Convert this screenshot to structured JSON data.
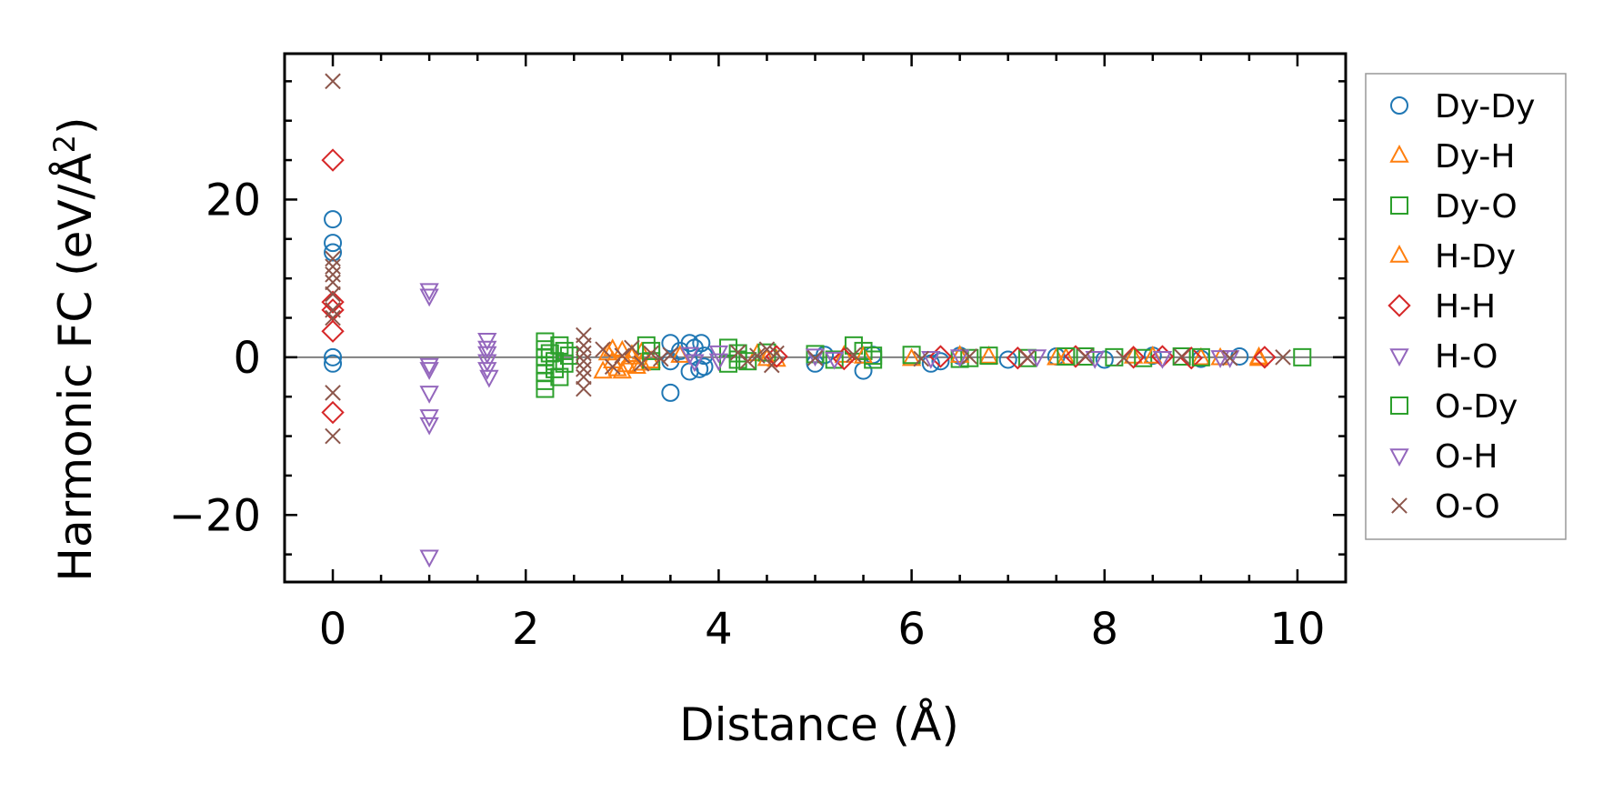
{
  "chart_data": {
    "type": "scatter",
    "xlabel": "Distance (Å)",
    "ylabel": "Harmonic FC (eV/Å²)",
    "ylabel_main": "Harmonic FC (eV/Å",
    "ylabel_sup": "2",
    "ylabel_close": ")",
    "xlim": [
      -0.5,
      10.5
    ],
    "ylim": [
      -28.5,
      38.5
    ],
    "x_ticks": [
      0,
      2,
      4,
      6,
      8,
      10
    ],
    "y_ticks": [
      -20,
      0,
      20
    ],
    "x_tick_labels": [
      "0",
      "2",
      "4",
      "6",
      "8",
      "10"
    ],
    "y_tick_labels": [
      "−20",
      "0",
      "20"
    ],
    "grid": false,
    "zero_line": true,
    "legend_position": "outside-right",
    "series": [
      {
        "name": "Dy-Dy",
        "marker": "circle",
        "color": "#1f77b4",
        "points": [
          [
            0,
            17.5
          ],
          [
            0,
            14.5
          ],
          [
            0,
            13.3
          ],
          [
            0,
            0
          ],
          [
            0,
            -0.8
          ],
          [
            3.5,
            1.8
          ],
          [
            3.5,
            -4.5
          ],
          [
            3.5,
            -0.5
          ],
          [
            3.6,
            0.8
          ],
          [
            3.7,
            1.8
          ],
          [
            3.7,
            -1.8
          ],
          [
            3.75,
            1.2
          ],
          [
            3.8,
            -1.5
          ],
          [
            3.82,
            1.8
          ],
          [
            3.85,
            -1.2
          ],
          [
            3.85,
            0.2
          ],
          [
            5.0,
            -0.8
          ],
          [
            5.1,
            0.3
          ],
          [
            5.5,
            -1.7
          ],
          [
            5.6,
            0.3
          ],
          [
            6.2,
            -0.8
          ],
          [
            6.3,
            -0.5
          ],
          [
            6.5,
            0.2
          ],
          [
            7.0,
            -0.3
          ],
          [
            7.5,
            0.1
          ],
          [
            8.0,
            -0.3
          ],
          [
            8.5,
            0.2
          ],
          [
            9.0,
            -0.2
          ],
          [
            9.4,
            0.1
          ]
        ]
      },
      {
        "name": "Dy-H",
        "marker": "triangle-up",
        "color": "#ff7f0e",
        "points": [
          [
            2.8,
            -1.8
          ],
          [
            2.85,
            0.5
          ],
          [
            2.9,
            1.0
          ],
          [
            2.95,
            -1.5
          ],
          [
            3.0,
            0.8
          ],
          [
            3.05,
            -1.0
          ],
          [
            3.1,
            0.3
          ],
          [
            3.15,
            -1.2
          ],
          [
            3.2,
            0.6
          ],
          [
            3.3,
            -0.5
          ],
          [
            4.4,
            0.4
          ],
          [
            4.6,
            -0.3
          ],
          [
            5.3,
            0.2
          ],
          [
            6.0,
            -0.2
          ],
          [
            6.8,
            0.1
          ],
          [
            7.6,
            -0.1
          ],
          [
            8.3,
            0.1
          ],
          [
            9.0,
            -0.1
          ],
          [
            9.6,
            -0.2
          ]
        ]
      },
      {
        "name": "Dy-O",
        "marker": "square",
        "color": "#2ca02c",
        "points": [
          [
            2.2,
            2.0
          ],
          [
            2.2,
            1.0
          ],
          [
            2.2,
            0
          ],
          [
            2.2,
            -1.0
          ],
          [
            2.2,
            -2.0
          ],
          [
            2.2,
            -3.0
          ],
          [
            2.2,
            -4.0
          ],
          [
            2.25,
            0.5
          ],
          [
            2.3,
            -1.5
          ],
          [
            2.35,
            -2.5
          ],
          [
            2.4,
            0.8
          ],
          [
            2.4,
            -0.8
          ],
          [
            2.45,
            0.2
          ],
          [
            3.25,
            1.5
          ],
          [
            3.3,
            -0.5
          ],
          [
            4.1,
            1.2
          ],
          [
            4.1,
            -0.8
          ],
          [
            4.2,
            0.5
          ],
          [
            4.3,
            -0.5
          ],
          [
            4.5,
            0.6
          ],
          [
            5.0,
            0.4
          ],
          [
            5.2,
            -0.3
          ],
          [
            5.4,
            1.5
          ],
          [
            5.5,
            0.8
          ],
          [
            5.6,
            -0.3
          ],
          [
            6.0,
            0.3
          ],
          [
            6.5,
            -0.2
          ],
          [
            6.8,
            0.2
          ],
          [
            7.2,
            -0.1
          ],
          [
            7.8,
            0.1
          ],
          [
            8.4,
            -0.1
          ],
          [
            8.8,
            0.1
          ],
          [
            10.05,
            0
          ]
        ]
      },
      {
        "name": "H-Dy",
        "marker": "triangle-up",
        "color": "#ff7f0e",
        "points": [
          [
            2.9,
            -0.5
          ],
          [
            3.0,
            -1.8
          ],
          [
            3.1,
            0.0
          ],
          [
            3.2,
            -0.8
          ],
          [
            3.6,
            0.2
          ],
          [
            4.5,
            -0.2
          ],
          [
            5.5,
            0.1
          ],
          [
            6.5,
            0.2
          ],
          [
            7.5,
            -0.1
          ],
          [
            8.5,
            0.1
          ],
          [
            9.2,
            -0.1
          ],
          [
            9.6,
            0
          ]
        ]
      },
      {
        "name": "H-H",
        "marker": "diamond",
        "color": "#d62728",
        "points": [
          [
            0,
            25
          ],
          [
            0,
            7
          ],
          [
            0,
            6
          ],
          [
            0,
            3.3
          ],
          [
            0,
            -7
          ],
          [
            4.6,
            0.1
          ],
          [
            5.3,
            -0.2
          ],
          [
            6.3,
            0.1
          ],
          [
            7.1,
            -0.1
          ],
          [
            7.7,
            0.1
          ],
          [
            8.3,
            0
          ],
          [
            8.6,
            0.1
          ],
          [
            8.9,
            -0.1
          ],
          [
            9.66,
            0
          ]
        ]
      },
      {
        "name": "H-O",
        "marker": "triangle-down",
        "color": "#9467bd",
        "points": [
          [
            1.0,
            8.5
          ],
          [
            1.0,
            7.8
          ],
          [
            1.0,
            -1.5
          ],
          [
            1.0,
            -4.5
          ],
          [
            1.0,
            -7.5
          ],
          [
            1.0,
            -8.5
          ],
          [
            1.0,
            -25.3
          ],
          [
            1.6,
            2.2
          ],
          [
            1.6,
            1.2
          ],
          [
            1.6,
            -0.5
          ],
          [
            1.6,
            -1.5
          ],
          [
            1.62,
            -2.5
          ],
          [
            3.7,
            0.4
          ],
          [
            4.0,
            -0.4
          ],
          [
            5.0,
            0.2
          ],
          [
            6.2,
            -0.1
          ],
          [
            7.3,
            0.1
          ],
          [
            8.6,
            -0.1
          ],
          [
            9.2,
            0
          ]
        ]
      },
      {
        "name": "O-Dy",
        "marker": "square",
        "color": "#2ca02c",
        "points": [
          [
            2.3,
            -0.5
          ],
          [
            2.35,
            1.5
          ],
          [
            3.3,
            0.8
          ],
          [
            4.2,
            -0.3
          ],
          [
            5.6,
            0.2
          ],
          [
            6.6,
            -0.1
          ],
          [
            7.6,
            0.1
          ],
          [
            8.1,
            0
          ],
          [
            9.0,
            0
          ]
        ]
      },
      {
        "name": "O-H",
        "marker": "triangle-down",
        "color": "#9467bd",
        "points": [
          [
            1.0,
            -1.0
          ],
          [
            1.6,
            0.5
          ],
          [
            3.75,
            -0.5
          ],
          [
            4.0,
            0.6
          ],
          [
            5.2,
            -0.2
          ],
          [
            6.5,
            0.1
          ],
          [
            7.9,
            -0.1
          ],
          [
            9.3,
            0
          ]
        ]
      },
      {
        "name": "O-O",
        "marker": "x",
        "color": "#8c564b",
        "points": [
          [
            0,
            35
          ],
          [
            0,
            12.5
          ],
          [
            0,
            11.5
          ],
          [
            0,
            10.5
          ],
          [
            0,
            9.5
          ],
          [
            0,
            8
          ],
          [
            0,
            6
          ],
          [
            0,
            5
          ],
          [
            0,
            -4.5
          ],
          [
            0,
            -10
          ],
          [
            2.6,
            2.8
          ],
          [
            2.6,
            1.5
          ],
          [
            2.6,
            0.5
          ],
          [
            2.6,
            -0.5
          ],
          [
            2.6,
            -1.5
          ],
          [
            2.6,
            -2.5
          ],
          [
            2.6,
            -4.0
          ],
          [
            2.8,
            1.0
          ],
          [
            2.9,
            -1.2
          ],
          [
            3.0,
            0.2
          ],
          [
            3.1,
            1.2
          ],
          [
            3.2,
            -0.8
          ],
          [
            3.3,
            0.5
          ],
          [
            3.4,
            -0.2
          ],
          [
            3.5,
            0.3
          ],
          [
            4.2,
            0.6
          ],
          [
            4.3,
            -0.5
          ],
          [
            4.4,
            0.2
          ],
          [
            4.5,
            1.0
          ],
          [
            4.55,
            -1.0
          ],
          [
            4.6,
            0.5
          ],
          [
            5.0,
            -0.1
          ],
          [
            5.4,
            0.3
          ],
          [
            6.1,
            -0.2
          ],
          [
            6.6,
            0.1
          ],
          [
            7.2,
            -0.1
          ],
          [
            7.8,
            0.1
          ],
          [
            8.2,
            -0.1
          ],
          [
            8.8,
            0.1
          ],
          [
            9.3,
            -0.1
          ],
          [
            9.85,
            0
          ]
        ]
      }
    ]
  }
}
